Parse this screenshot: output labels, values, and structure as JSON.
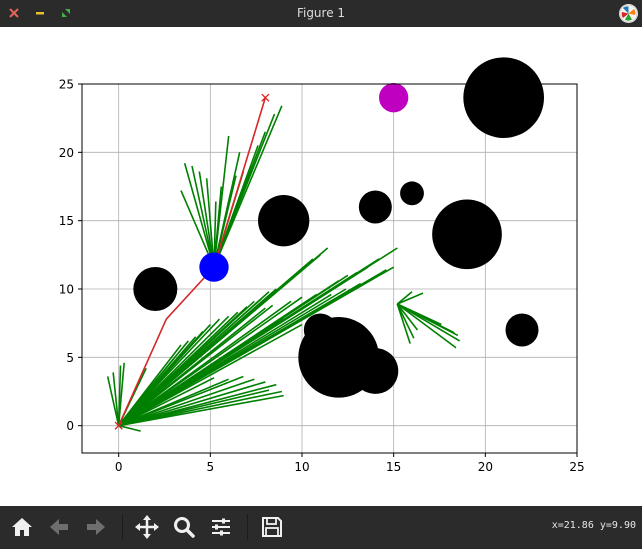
{
  "window": {
    "title": "Figure 1"
  },
  "toolbar": {
    "items": [
      "home-icon",
      "back-arrow-icon",
      "forward-arrow-icon",
      "pan-icon",
      "zoom-icon",
      "subplots-icon",
      "save-icon"
    ],
    "coords_text": "x=21.86 y=9.90"
  },
  "colors": {
    "titlebar": "#2b2b2b",
    "tree": "#008000",
    "path": "#d62728",
    "agent": "#0000ff",
    "goal_circle": "#c000c0",
    "obstacle": "#000000",
    "grid": "#b0b0b0"
  },
  "chart_data": {
    "type": "scatter",
    "xlim": [
      -2,
      25
    ],
    "ylim": [
      -2,
      25
    ],
    "xticks": [
      0,
      5,
      10,
      15,
      20,
      25
    ],
    "yticks": [
      0,
      5,
      10,
      15,
      20,
      25
    ],
    "grid": true,
    "obstacles": [
      {
        "x": 2,
        "y": 10,
        "r": 1.2
      },
      {
        "x": 9,
        "y": 15,
        "r": 1.4
      },
      {
        "x": 14,
        "y": 16,
        "r": 0.9
      },
      {
        "x": 16,
        "y": 17,
        "r": 0.65
      },
      {
        "x": 19,
        "y": 14,
        "r": 1.9
      },
      {
        "x": 21,
        "y": 24,
        "r": 2.2
      },
      {
        "x": 22,
        "y": 7,
        "r": 0.9
      },
      {
        "x": 11,
        "y": 7,
        "r": 0.9
      },
      {
        "x": 14,
        "y": 4,
        "r": 1.25
      },
      {
        "x": 12,
        "y": 5,
        "r": 2.2
      }
    ],
    "agent": {
      "x": 5.2,
      "y": 11.6,
      "r": 0.8
    },
    "goal_circle": {
      "x": 15,
      "y": 24,
      "r": 0.8
    },
    "start": {
      "x": 0,
      "y": 0
    },
    "goal": {
      "x": 8,
      "y": 24
    },
    "path": [
      [
        0,
        0
      ],
      [
        2.6,
        7.8
      ],
      [
        5.2,
        11.6
      ],
      [
        6.6,
        17.8
      ],
      [
        8,
        24
      ]
    ],
    "tree": {
      "fans": [
        {
          "origin": [
            0,
            0
          ],
          "ends": [
            [
              -0.6,
              3.6
            ],
            [
              -0.3,
              3.9
            ],
            [
              0.1,
              4.4
            ],
            [
              0.3,
              4.6
            ],
            [
              1.5,
              4.2
            ],
            [
              2.7,
              4.1
            ],
            [
              3.0,
              4.9
            ],
            [
              3.4,
              5.9
            ],
            [
              3.8,
              6.2
            ],
            [
              4.2,
              6.5
            ],
            [
              4.6,
              6.9
            ],
            [
              5.0,
              7.4
            ],
            [
              5.5,
              7.8
            ],
            [
              6.0,
              8.0
            ],
            [
              6.5,
              8.3
            ],
            [
              7.0,
              8.7
            ],
            [
              7.4,
              9.1
            ],
            [
              7.8,
              9.3
            ],
            [
              8.2,
              9.8
            ],
            [
              8.6,
              10.0
            ],
            [
              9.0,
              10.3
            ],
            [
              9.4,
              10.7
            ],
            [
              9.8,
              11.2
            ],
            [
              10.2,
              11.6
            ],
            [
              10.6,
              12.2
            ],
            [
              11.0,
              12.5
            ],
            [
              11.4,
              13.0
            ],
            [
              12.0,
              10.6
            ],
            [
              12.5,
              11.0
            ],
            [
              13.0,
              11.2
            ],
            [
              13.6,
              11.6
            ],
            [
              14.2,
              12.2
            ],
            [
              15.2,
              13.0
            ],
            [
              14.6,
              11.4
            ],
            [
              15.0,
              11.6
            ],
            [
              8.0,
              8.6
            ],
            [
              8.4,
              8.8
            ],
            [
              9.4,
              9.1
            ],
            [
              10.0,
              9.4
            ],
            [
              10.8,
              9.6
            ],
            [
              11.6,
              9.6
            ],
            [
              12.4,
              10.0
            ],
            [
              13.2,
              10.4
            ],
            [
              9.0,
              7.8
            ],
            [
              10.0,
              7.4
            ],
            [
              3.6,
              3.8
            ],
            [
              4.4,
              3.6
            ],
            [
              5.2,
              3.5
            ],
            [
              6.0,
              3.4
            ],
            [
              6.8,
              3.6
            ],
            [
              7.4,
              3.4
            ],
            [
              8.0,
              3.2
            ],
            [
              8.6,
              3.0
            ],
            [
              8.2,
              2.6
            ],
            [
              8.9,
              2.5
            ],
            [
              9.0,
              2.2
            ],
            [
              1.2,
              -0.4
            ]
          ]
        },
        {
          "origin": [
            5.2,
            11.6
          ],
          "ends": [
            [
              3.6,
              19.2
            ],
            [
              4.0,
              19.0
            ],
            [
              4.4,
              18.6
            ],
            [
              4.8,
              18.1
            ],
            [
              5.3,
              16.4
            ],
            [
              5.6,
              17.5
            ],
            [
              6.1,
              17.0
            ],
            [
              6.4,
              18.3
            ],
            [
              6.8,
              18.6
            ],
            [
              7.2,
              19.0
            ],
            [
              7.6,
              20.5
            ],
            [
              8.0,
              21.5
            ],
            [
              8.5,
              22.8
            ],
            [
              8.9,
              23.4
            ],
            [
              3.4,
              17.2
            ],
            [
              6.6,
              20.0
            ],
            [
              6.0,
              21.2
            ]
          ]
        },
        {
          "origin": [
            15.2,
            8.9
          ],
          "ends": [
            [
              16.0,
              9.8
            ],
            [
              16.6,
              9.7
            ],
            [
              17.6,
              7.4
            ],
            [
              18.3,
              6.8
            ],
            [
              18.5,
              6.6
            ],
            [
              18.6,
              6.2
            ],
            [
              18.4,
              5.7
            ],
            [
              16.3,
              7.0
            ],
            [
              15.9,
              6.0
            ],
            [
              16.1,
              6.4
            ]
          ]
        }
      ]
    }
  }
}
